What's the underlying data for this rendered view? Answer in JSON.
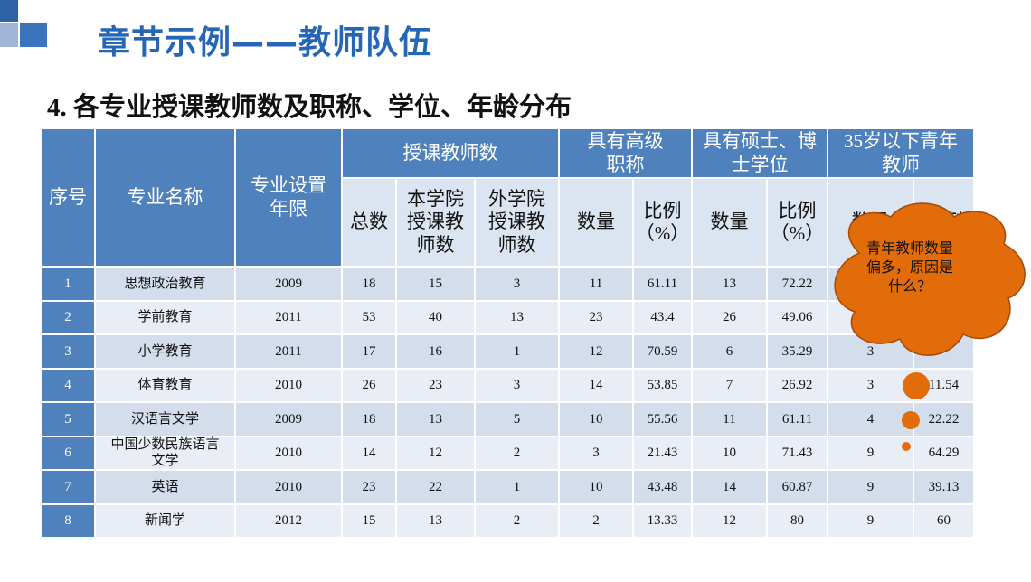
{
  "header": {
    "title": "章节示例——教师队伍",
    "subtitle": "4. 各专业授课教师数及职称、学位、年龄分布"
  },
  "table": {
    "header_top": [
      "序号",
      "专业名称",
      "专业设置年限",
      "授课教师数",
      "具有高级职称",
      "具有硕士、博士学位",
      "35岁以下青年教师"
    ],
    "header_sub": [
      "总数",
      "本学院授课教师数",
      "外学院授课教师数",
      "数量",
      "比例（%）",
      "数量",
      "比例（%）",
      "数量",
      "比例"
    ],
    "rows": [
      [
        "1",
        "思想政治教育",
        "2009",
        "18",
        "15",
        "3",
        "11",
        "61.11",
        "13",
        "72.22",
        null,
        null
      ],
      [
        "2",
        "学前教育",
        "2011",
        "53",
        "40",
        "13",
        "23",
        "43.4",
        "26",
        "49.06",
        null,
        null
      ],
      [
        "3",
        "小学教育",
        "2011",
        "17",
        "16",
        "1",
        "12",
        "70.59",
        "6",
        "35.29",
        "3",
        null
      ],
      [
        "4",
        "体育教育",
        "2010",
        "26",
        "23",
        "3",
        "14",
        "53.85",
        "7",
        "26.92",
        "3",
        "11.54"
      ],
      [
        "5",
        "汉语言文学",
        "2009",
        "18",
        "13",
        "5",
        "10",
        "55.56",
        "11",
        "61.11",
        "4",
        "22.22"
      ],
      [
        "6",
        "中国少数民族语言文学",
        "2010",
        "14",
        "12",
        "2",
        "3",
        "21.43",
        "10",
        "71.43",
        "9",
        "64.29"
      ],
      [
        "7",
        "英语",
        "2010",
        "23",
        "22",
        "1",
        "10",
        "43.48",
        "14",
        "60.87",
        "9",
        "39.13"
      ],
      [
        "8",
        "新闻学",
        "2012",
        "15",
        "13",
        "2",
        "2",
        "13.33",
        "12",
        "80",
        "9",
        "60"
      ]
    ]
  },
  "callout": "青年教师数量偏多，原因是什么？"
}
